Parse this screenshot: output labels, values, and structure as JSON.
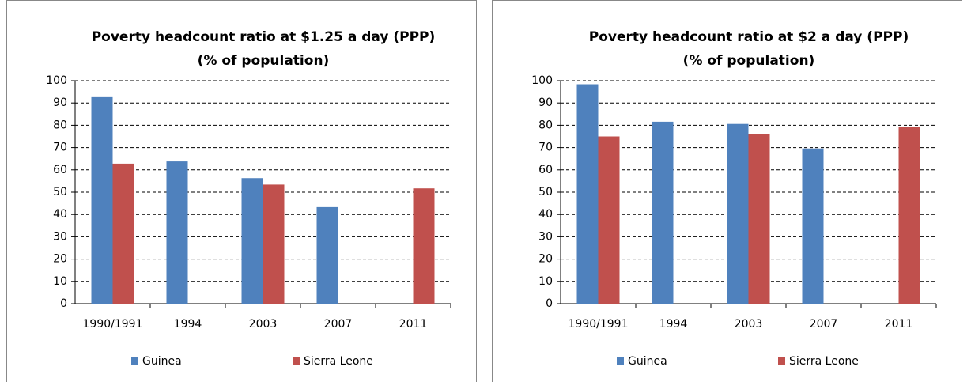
{
  "chart_data": [
    {
      "type": "bar",
      "title": [
        "Poverty headcount ratio at $1.25 a day (PPP)",
        "(% of population)"
      ],
      "categories": [
        "1990/1991",
        "1994",
        "2003",
        "2007",
        "2011"
      ],
      "series": [
        {
          "name": "Guinea",
          "color": "#4f81bd",
          "values": [
            92.6,
            63.8,
            56.3,
            43.3,
            null
          ]
        },
        {
          "name": "Sierra Leone",
          "color": "#c0504d",
          "values": [
            62.8,
            null,
            53.4,
            null,
            51.7
          ]
        }
      ],
      "ylim": [
        0,
        100
      ],
      "yticks": [
        0,
        10,
        20,
        30,
        40,
        50,
        60,
        70,
        80,
        90,
        100
      ],
      "grid": true,
      "legend": "bottom"
    },
    {
      "type": "bar",
      "title": [
        "Poverty headcount ratio at $2 a day (PPP)",
        "(% of population)"
      ],
      "categories": [
        "1990/1991",
        "1994",
        "2003",
        "2007",
        "2011"
      ],
      "series": [
        {
          "name": "Guinea",
          "color": "#4f81bd",
          "values": [
            98.4,
            81.6,
            80.6,
            69.6,
            null
          ]
        },
        {
          "name": "Sierra Leone",
          "color": "#c0504d",
          "values": [
            75.0,
            null,
            76.1,
            null,
            79.3
          ]
        }
      ],
      "ylim": [
        0,
        100
      ],
      "yticks": [
        0,
        10,
        20,
        30,
        40,
        50,
        60,
        70,
        80,
        90,
        100
      ],
      "grid": true,
      "legend": "bottom"
    }
  ]
}
